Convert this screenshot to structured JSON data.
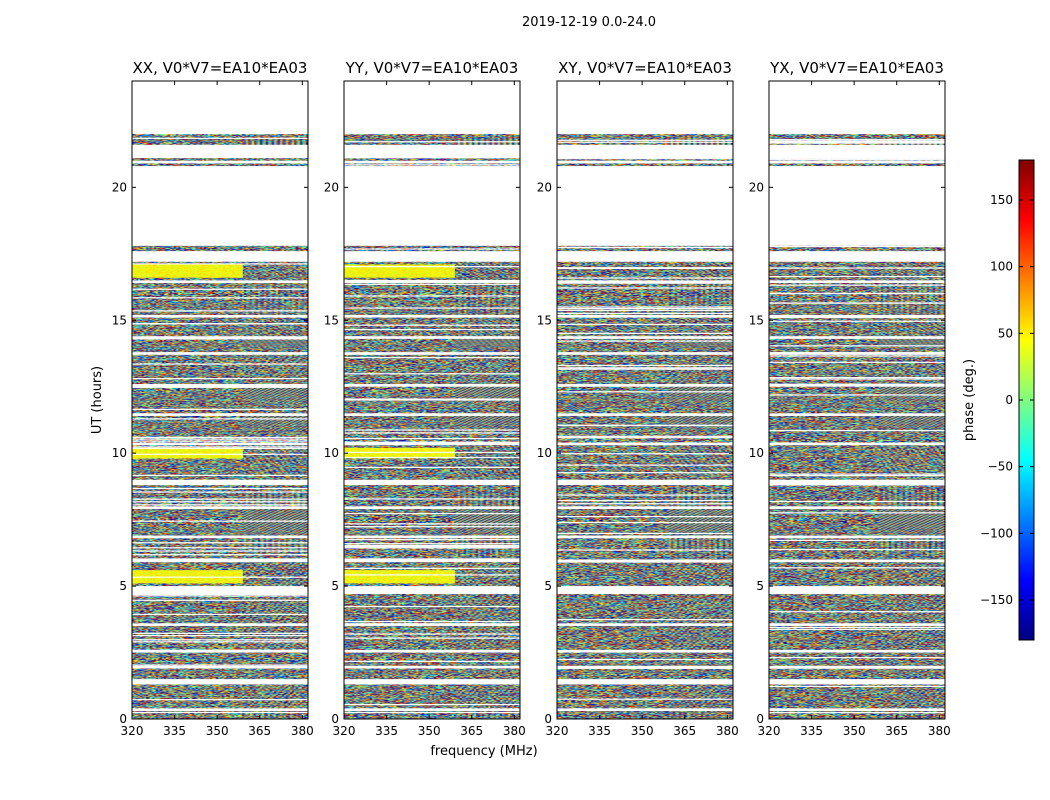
{
  "suptitle": "2019-12-19 0.0-24.0",
  "ylabel": "UT (hours)",
  "xlabel": "frequency (MHz)",
  "colorbar": {
    "label": "phase (deg.)",
    "range": [
      -180,
      180
    ],
    "ticks": [
      "150",
      "100",
      "50",
      "0",
      "−50",
      "−100",
      "−150"
    ],
    "tick_values": [
      150,
      100,
      50,
      0,
      -50,
      -100,
      -150
    ],
    "stops": [
      "#000080",
      "#0000ff",
      "#0080ff",
      "#00ffff",
      "#80ff80",
      "#ffff00",
      "#ff8000",
      "#ff0000",
      "#800000"
    ]
  },
  "chart_data": {
    "type": "heatmap",
    "metric": "visibility phase (deg.)",
    "xlim": [
      320,
      382
    ],
    "ylim": [
      0,
      24
    ],
    "xticks": [
      320,
      335,
      350,
      365,
      380
    ],
    "xtick_labels": [
      "320",
      "335",
      "350",
      "365",
      "380"
    ],
    "yticks": [
      0,
      5,
      10,
      15,
      20
    ],
    "ytick_labels": [
      "0",
      "5",
      "10",
      "15",
      "20"
    ],
    "panels": [
      {
        "title": "XX, V0*V7=EA10*EA03",
        "pol": "XX"
      },
      {
        "title": "YY, V0*V7=EA10*EA03",
        "pol": "YY"
      },
      {
        "title": "XY, V0*V7=EA10*EA03",
        "pol": "XY"
      },
      {
        "title": "YX, V0*V7=EA10*EA03",
        "pol": "YX"
      }
    ],
    "data_time_ranges_hours": [
      [
        0.0,
        0.3
      ],
      [
        0.4,
        1.3
      ],
      [
        1.5,
        1.9
      ],
      [
        2.0,
        2.5
      ],
      [
        2.6,
        3.5
      ],
      [
        3.6,
        4.7
      ],
      [
        5.0,
        5.9
      ],
      [
        6.0,
        6.8
      ],
      [
        6.9,
        7.9
      ],
      [
        8.0,
        8.8
      ],
      [
        9.0,
        10.3
      ],
      [
        10.4,
        11.4
      ],
      [
        11.5,
        12.5
      ],
      [
        12.6,
        13.7
      ],
      [
        13.8,
        14.3
      ],
      [
        14.4,
        15.1
      ],
      [
        15.2,
        16.4
      ],
      [
        16.5,
        17.2
      ],
      [
        17.6,
        17.8
      ],
      [
        20.8,
        20.9
      ],
      [
        21.0,
        21.1
      ],
      [
        21.6,
        22.0
      ]
    ],
    "coherent_time_ranges_hours": [
      [
        5.1,
        5.6
      ],
      [
        9.8,
        10.2
      ],
      [
        16.6,
        17.1
      ]
    ],
    "coherent_pols": [
      "XX",
      "YY"
    ]
  }
}
